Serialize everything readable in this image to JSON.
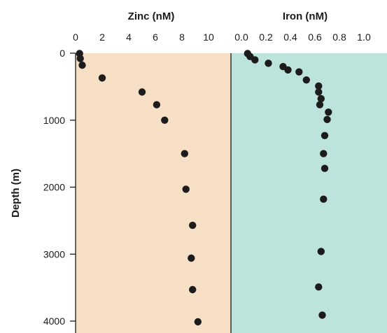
{
  "chart_data": [
    {
      "type": "scatter",
      "title": "Zinc (nM)",
      "xlabel": "",
      "ylabel": "Depth (m)",
      "xlim": [
        0,
        12
      ],
      "ylim": [
        0,
        4000
      ],
      "y_inverted": true,
      "x_ticks": [
        "0",
        "2",
        "4",
        "6",
        "8",
        "10"
      ],
      "y_ticks": [
        "0",
        "1000",
        "2000",
        "3000",
        "4000"
      ],
      "background_color": "#f7dfc6",
      "points": [
        {
          "x": 0.3,
          "y": 5
        },
        {
          "x": 0.35,
          "y": 80
        },
        {
          "x": 0.5,
          "y": 180
        },
        {
          "x": 2.0,
          "y": 370
        },
        {
          "x": 5.0,
          "y": 580
        },
        {
          "x": 6.1,
          "y": 770
        },
        {
          "x": 6.7,
          "y": 1000
        },
        {
          "x": 8.2,
          "y": 1500
        },
        {
          "x": 8.3,
          "y": 2030
        },
        {
          "x": 8.8,
          "y": 2570
        },
        {
          "x": 8.7,
          "y": 3060
        },
        {
          "x": 8.8,
          "y": 3530
        },
        {
          "x": 9.2,
          "y": 4010
        }
      ]
    },
    {
      "type": "scatter",
      "title": "Iron (nM)",
      "xlabel": "",
      "ylabel": "",
      "xlim": [
        0,
        1.2
      ],
      "ylim": [
        0,
        4000
      ],
      "y_inverted": true,
      "x_ticks": [
        "0.0",
        "0.2",
        "0.4",
        "0.6",
        "0.8",
        "1.0"
      ],
      "background_color": "#bde3dd",
      "points": [
        {
          "x": 0.05,
          "y": 5
        },
        {
          "x": 0.07,
          "y": 50
        },
        {
          "x": 0.11,
          "y": 100
        },
        {
          "x": 0.22,
          "y": 150
        },
        {
          "x": 0.34,
          "y": 200
        },
        {
          "x": 0.38,
          "y": 250
        },
        {
          "x": 0.47,
          "y": 280
        },
        {
          "x": 0.53,
          "y": 400
        },
        {
          "x": 0.63,
          "y": 490
        },
        {
          "x": 0.63,
          "y": 580
        },
        {
          "x": 0.65,
          "y": 680
        },
        {
          "x": 0.64,
          "y": 770
        },
        {
          "x": 0.71,
          "y": 880
        },
        {
          "x": 0.7,
          "y": 990
        },
        {
          "x": 0.68,
          "y": 1230
        },
        {
          "x": 0.67,
          "y": 1500
        },
        {
          "x": 0.68,
          "y": 1720
        },
        {
          "x": 0.67,
          "y": 2180
        },
        {
          "x": 0.65,
          "y": 2960
        },
        {
          "x": 0.63,
          "y": 3490
        },
        {
          "x": 0.66,
          "y": 3910
        }
      ]
    }
  ]
}
